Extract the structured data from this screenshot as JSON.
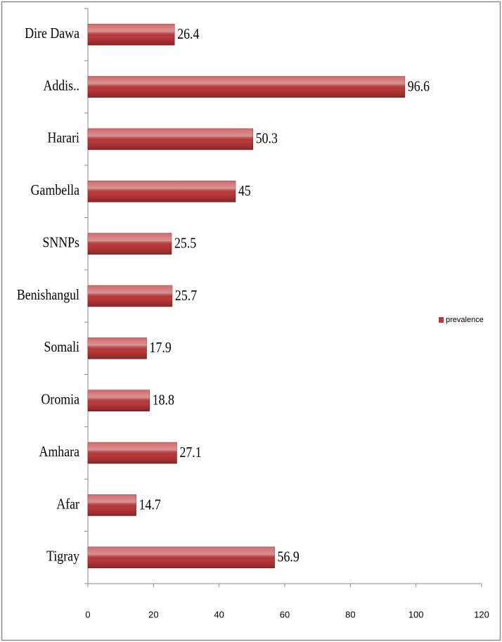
{
  "chart_data": {
    "type": "bar",
    "orientation": "horizontal",
    "categories": [
      "Dire Dawa",
      "Addis..",
      "Harari",
      "Gambella",
      "SNNPs",
      "Benishangul",
      "Somali",
      "Oromia",
      "Amhara",
      "Afar",
      "Tigray"
    ],
    "series": [
      {
        "name": "prevalence",
        "color": "#c0393b",
        "values": [
          26.4,
          96.6,
          50.3,
          45,
          25.5,
          25.7,
          17.9,
          18.8,
          27.1,
          14.7,
          56.9
        ]
      }
    ],
    "xlim": [
      0,
      120
    ],
    "xticks": [
      0,
      20,
      40,
      60,
      80,
      100,
      120
    ],
    "legend": "right"
  }
}
